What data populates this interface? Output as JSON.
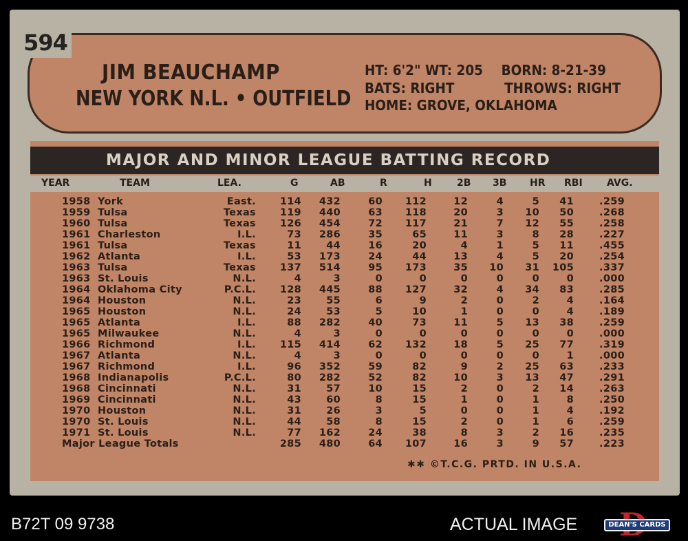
{
  "card": {
    "number": "594",
    "name": "JIM BEAUCHAMP",
    "team_position": "NEW YORK N.L. • OUTFIELD",
    "bio": {
      "line1_left": "HT: 6'2\" WT: 205",
      "line1_right": "BORN: 8-21-39",
      "line2_left": "BATS: RIGHT",
      "line2_right": "THROWS: RIGHT",
      "line3": "HOME: GROVE, OKLAHOMA"
    },
    "table_title": "MAJOR AND MINOR LEAGUE BATTING RECORD",
    "columns": [
      "YEAR",
      "TEAM",
      "LEA.",
      "G",
      "AB",
      "R",
      "H",
      "2B",
      "3B",
      "HR",
      "RBI",
      "AVG."
    ],
    "rows": [
      [
        "1958",
        "York",
        "East.",
        "114",
        "432",
        "60",
        "112",
        "12",
        "4",
        "5",
        "41",
        ".259"
      ],
      [
        "1959",
        "Tulsa",
        "Texas",
        "119",
        "440",
        "63",
        "118",
        "20",
        "3",
        "10",
        "50",
        ".268"
      ],
      [
        "1960",
        "Tulsa",
        "Texas",
        "126",
        "454",
        "72",
        "117",
        "21",
        "7",
        "12",
        "55",
        ".258"
      ],
      [
        "1961",
        "Charleston",
        "I.L.",
        "73",
        "286",
        "35",
        "65",
        "11",
        "3",
        "8",
        "28",
        ".227"
      ],
      [
        "1961",
        "Tulsa",
        "Texas",
        "11",
        "44",
        "16",
        "20",
        "4",
        "1",
        "5",
        "11",
        ".455"
      ],
      [
        "1962",
        "Atlanta",
        "I.L.",
        "53",
        "173",
        "24",
        "44",
        "13",
        "4",
        "5",
        "20",
        ".254"
      ],
      [
        "1963",
        "Tulsa",
        "Texas",
        "137",
        "514",
        "95",
        "173",
        "35",
        "10",
        "31",
        "105",
        ".337"
      ],
      [
        "1963",
        "St. Louis",
        "N.L.",
        "4",
        "3",
        "0",
        "0",
        "0",
        "0",
        "0",
        "0",
        ".000"
      ],
      [
        "1964",
        "Oklahoma City",
        "P.C.L.",
        "128",
        "445",
        "88",
        "127",
        "32",
        "4",
        "34",
        "83",
        ".285"
      ],
      [
        "1964",
        "Houston",
        "N.L.",
        "23",
        "55",
        "6",
        "9",
        "2",
        "0",
        "2",
        "4",
        ".164"
      ],
      [
        "1965",
        "Houston",
        "N.L.",
        "24",
        "53",
        "5",
        "10",
        "1",
        "0",
        "0",
        "4",
        ".189"
      ],
      [
        "1965",
        "Atlanta",
        "I.L.",
        "88",
        "282",
        "40",
        "73",
        "11",
        "5",
        "13",
        "38",
        ".259"
      ],
      [
        "1965",
        "Milwaukee",
        "N.L.",
        "4",
        "3",
        "0",
        "0",
        "0",
        "0",
        "0",
        "0",
        ".000"
      ],
      [
        "1966",
        "Richmond",
        "I.L.",
        "115",
        "414",
        "62",
        "132",
        "18",
        "5",
        "25",
        "77",
        ".319"
      ],
      [
        "1967",
        "Atlanta",
        "N.L.",
        "4",
        "3",
        "0",
        "0",
        "0",
        "0",
        "0",
        "1",
        ".000"
      ],
      [
        "1967",
        "Richmond",
        "I.L.",
        "96",
        "352",
        "59",
        "82",
        "9",
        "2",
        "25",
        "63",
        ".233"
      ],
      [
        "1968",
        "Indianapolis",
        "P.C.L.",
        "80",
        "282",
        "52",
        "82",
        "10",
        "3",
        "13",
        "47",
        ".291"
      ],
      [
        "1968",
        "Cincinnati",
        "N.L.",
        "31",
        "57",
        "10",
        "15",
        "2",
        "0",
        "2",
        "14",
        ".263"
      ],
      [
        "1969",
        "Cincinnati",
        "N.L.",
        "43",
        "60",
        "8",
        "15",
        "1",
        "0",
        "1",
        "8",
        ".250"
      ],
      [
        "1970",
        "Houston",
        "N.L.",
        "31",
        "26",
        "3",
        "5",
        "0",
        "0",
        "1",
        "4",
        ".192"
      ],
      [
        "1970",
        "St. Louis",
        "N.L.",
        "44",
        "58",
        "8",
        "15",
        "2",
        "0",
        "1",
        "6",
        ".259"
      ],
      [
        "1971",
        "St. Louis",
        "N.L.",
        "77",
        "162",
        "24",
        "38",
        "8",
        "3",
        "2",
        "16",
        ".235"
      ]
    ],
    "totals": [
      "Major League Totals",
      "285",
      "480",
      "64",
      "107",
      "16",
      "3",
      "9",
      "57",
      ".223"
    ],
    "footer": "✱✱ ©T.C.G. PRTD. IN U.S.A."
  },
  "overlay": {
    "cert_number": "B72T 09 9738",
    "actual_image": "ACTUAL IMAGE",
    "logo_text": "DEAN'S CARDS",
    "logo_letter": "D"
  },
  "colors": {
    "card_border": "#b7b2a4",
    "panel": "#c08566",
    "title_bar": "#2b2523",
    "ink": "#2a1e18"
  }
}
